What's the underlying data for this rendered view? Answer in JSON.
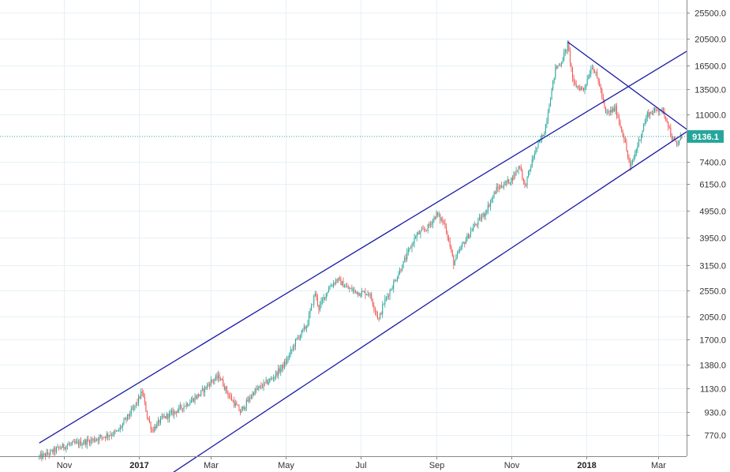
{
  "chart_data": {
    "type": "candlestick",
    "scale": "log",
    "y_axis_position": "right",
    "grid": true,
    "y_ticks": [
      770.0,
      930.0,
      1130.0,
      1380.0,
      1700.0,
      2050.0,
      2550.0,
      3150.0,
      3950.0,
      4950.0,
      6150.0,
      7400.0,
      11000.0,
      13500.0,
      16500.0,
      20500.0,
      25500.0
    ],
    "y_tick_labels": [
      "770.0",
      "930.0",
      "1130.0",
      "1380.0",
      "1700.0",
      "2050.0",
      "2550.0",
      "3150.0",
      "3950.0",
      "4950.0",
      "6150.0",
      "7400.0",
      "11000.0",
      "13500.0",
      "16500.0",
      "20500.0",
      "25500.0"
    ],
    "x_tick_labels": [
      "Nov",
      "2017",
      "Mar",
      "May",
      "Jul",
      "Sep",
      "Nov",
      "2018",
      "Mar"
    ],
    "x_tick_dates": [
      "2016-11-01",
      "2017-01-01",
      "2017-03-01",
      "2017-05-01",
      "2017-07-01",
      "2017-09-01",
      "2017-11-01",
      "2018-01-01",
      "2018-03-01"
    ],
    "x_range": [
      "2016-09-10",
      "2018-03-24"
    ],
    "last_price": 9136.1,
    "last_price_label": "9136.1",
    "colors": {
      "up": "#26a69a",
      "down": "#ef5350",
      "trendline": "#1a1aa6",
      "grid": "#e7f0f5",
      "last_price": "#26a69a"
    },
    "price_path": [
      [
        "2016-10-12",
        640
      ],
      [
        "2016-10-20",
        660
      ],
      [
        "2016-10-28",
        690
      ],
      [
        "2016-11-05",
        710
      ],
      [
        "2016-11-15",
        720
      ],
      [
        "2016-11-25",
        740
      ],
      [
        "2016-12-05",
        765
      ],
      [
        "2016-12-15",
        790
      ],
      [
        "2016-12-22",
        880
      ],
      [
        "2016-12-28",
        960
      ],
      [
        "2017-01-04",
        1100
      ],
      [
        "2017-01-08",
        900
      ],
      [
        "2017-01-12",
        800
      ],
      [
        "2017-01-20",
        880
      ],
      [
        "2017-01-30",
        930
      ],
      [
        "2017-02-10",
        1000
      ],
      [
        "2017-02-20",
        1080
      ],
      [
        "2017-03-01",
        1200
      ],
      [
        "2017-03-08",
        1250
      ],
      [
        "2017-03-15",
        1080
      ],
      [
        "2017-03-25",
        930
      ],
      [
        "2017-04-05",
        1100
      ],
      [
        "2017-04-20",
        1230
      ],
      [
        "2017-05-01",
        1400
      ],
      [
        "2017-05-10",
        1700
      ],
      [
        "2017-05-18",
        1900
      ],
      [
        "2017-05-25",
        2500
      ],
      [
        "2017-05-28",
        2200
      ],
      [
        "2017-06-05",
        2600
      ],
      [
        "2017-06-12",
        2800
      ],
      [
        "2017-06-20",
        2600
      ],
      [
        "2017-06-30",
        2500
      ],
      [
        "2017-07-08",
        2500
      ],
      [
        "2017-07-16",
        2000
      ],
      [
        "2017-07-20",
        2300
      ],
      [
        "2017-07-28",
        2700
      ],
      [
        "2017-08-05",
        3200
      ],
      [
        "2017-08-15",
        4000
      ],
      [
        "2017-08-25",
        4300
      ],
      [
        "2017-09-01",
        4800
      ],
      [
        "2017-09-08",
        4400
      ],
      [
        "2017-09-15",
        3200
      ],
      [
        "2017-09-22",
        3700
      ],
      [
        "2017-10-01",
        4300
      ],
      [
        "2017-10-10",
        4800
      ],
      [
        "2017-10-20",
        5900
      ],
      [
        "2017-11-01",
        6400
      ],
      [
        "2017-11-08",
        7200
      ],
      [
        "2017-11-12",
        6000
      ],
      [
        "2017-11-20",
        8000
      ],
      [
        "2017-11-28",
        9500
      ],
      [
        "2017-12-07",
        16000
      ],
      [
        "2017-12-12",
        17000
      ],
      [
        "2017-12-17",
        19500
      ],
      [
        "2017-12-22",
        14000
      ],
      [
        "2017-12-30",
        13500
      ],
      [
        "2018-01-06",
        16500
      ],
      [
        "2018-01-12",
        14000
      ],
      [
        "2018-01-17",
        11000
      ],
      [
        "2018-01-25",
        11500
      ],
      [
        "2018-02-01",
        9000
      ],
      [
        "2018-02-06",
        7000
      ],
      [
        "2018-02-12",
        8500
      ],
      [
        "2018-02-20",
        11000
      ],
      [
        "2018-03-03",
        11500
      ],
      [
        "2018-03-08",
        10500
      ],
      [
        "2018-03-12",
        9000
      ],
      [
        "2018-03-16",
        8500
      ],
      [
        "2018-03-20",
        9136.1
      ]
    ],
    "trendlines": [
      {
        "name": "channel-upper",
        "points": [
          [
            "2016-10-12",
            720
          ],
          [
            "2018-03-24",
            18500
          ]
        ]
      },
      {
        "name": "channel-lower",
        "points": [
          [
            "2017-01-20",
            530
          ],
          [
            "2018-03-24",
            9500
          ]
        ]
      },
      {
        "name": "descending-resistance",
        "points": [
          [
            "2017-12-17",
            20000
          ],
          [
            "2018-03-24",
            9700
          ]
        ]
      }
    ]
  }
}
